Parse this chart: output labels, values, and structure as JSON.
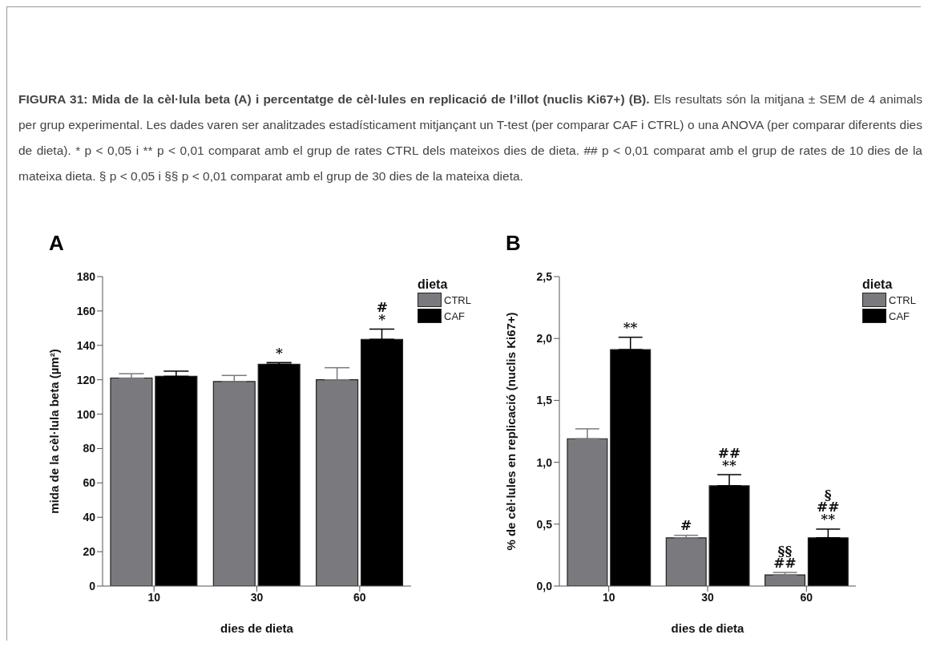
{
  "chart_data": [
    {
      "type": "bar",
      "title": "A",
      "annotations": [
        "FIGURA 31: Mida de la cèl·lula beta (A) i percentatge de cèl·lules en replicació de l’illot (nuclis Ki67+) (B).",
        "Els resultats són la mitjana ± SEM de 4 animals per grup experimental. Les dades varen ser analitzades estadísticament mitjançant un T-test (per comparar CAF i CTRL) o una ANOVA (per comparar diferents dies de dieta). * p < 0,05 i ** p < 0,01 comparat amb el grup de rates CTRL dels mateixos dies de dieta. ## p < 0,01 comparat amb el grup de rates de 10 dies de la mateixa dieta. § p < 0,05 i §§ p < 0,01 comparat amb el grup de 30 dies de la mateixa dieta.",
        {
          "text": "*",
          "x": "30",
          "y": 129
        },
        {
          "text": "*",
          "x": "60",
          "y": 143.5
        },
        {
          "text": "#",
          "x": "60",
          "y": 143.5
        }
      ],
      "categories": [
        "10",
        "30",
        "60"
      ],
      "xlabel": "dies de dieta",
      "ylabel": "mida de la cèl·lula beta (µm²)",
      "legend_title": "dieta",
      "legend": "top right",
      "series": [
        {
          "name": "CTRL",
          "color": "#7a7a7e",
          "values": [
            121,
            119,
            120
          ],
          "errors": [
            2.5,
            3.5,
            7
          ]
        },
        {
          "name": "CAF",
          "color": "#000000",
          "values": [
            122,
            129,
            143.5
          ],
          "errors": [
            3,
            1,
            6
          ]
        }
      ],
      "ylim": [
        0,
        180
      ],
      "yticks": [
        0,
        20,
        40,
        60,
        80,
        100,
        120,
        140,
        160,
        180
      ]
    },
    {
      "type": "bar",
      "title": "B",
      "annotations": [
        {
          "text": "**",
          "x": "10",
          "y": 1.91
        },
        {
          "text": "#",
          "x": "30",
          "y": 0.39
        },
        {
          "text": "**",
          "x": "30",
          "y": 0.81
        },
        {
          "text": "##",
          "x": "30",
          "y": 0.81
        },
        {
          "text": "##",
          "x": "60",
          "y": 0.09
        },
        {
          "text": "§§",
          "x": "60",
          "y": 0.09
        },
        {
          "text": "**",
          "x": "60",
          "y": 0.39
        },
        {
          "text": "##",
          "x": "60",
          "y": 0.39
        },
        {
          "text": "§",
          "x": "60",
          "y": 0.39
        }
      ],
      "categories": [
        "10",
        "30",
        "60"
      ],
      "xlabel": "dies de dieta",
      "ylabel": "% de cèl·lules en replicació (nuclis Ki67+)",
      "legend_title": "dieta",
      "legend": "top right",
      "series": [
        {
          "name": "CTRL",
          "color": "#7a7a7e",
          "values": [
            1.19,
            0.39,
            0.09
          ],
          "errors": [
            0.08,
            0.02,
            0.02
          ]
        },
        {
          "name": "CAF",
          "color": "#000000",
          "values": [
            1.91,
            0.81,
            0.39
          ],
          "errors": [
            0.1,
            0.09,
            0.07
          ]
        }
      ],
      "ylim": [
        0,
        2.5
      ],
      "yticks": [
        {
          "value": 0,
          "label": "0,0"
        },
        {
          "value": 0.5,
          "label": "0,5"
        },
        {
          "value": 1,
          "label": "1,0"
        },
        {
          "value": 1.5,
          "label": "1,5"
        },
        {
          "value": 2,
          "label": "2,0"
        },
        {
          "value": 2.5,
          "label": "2,5"
        }
      ]
    }
  ]
}
